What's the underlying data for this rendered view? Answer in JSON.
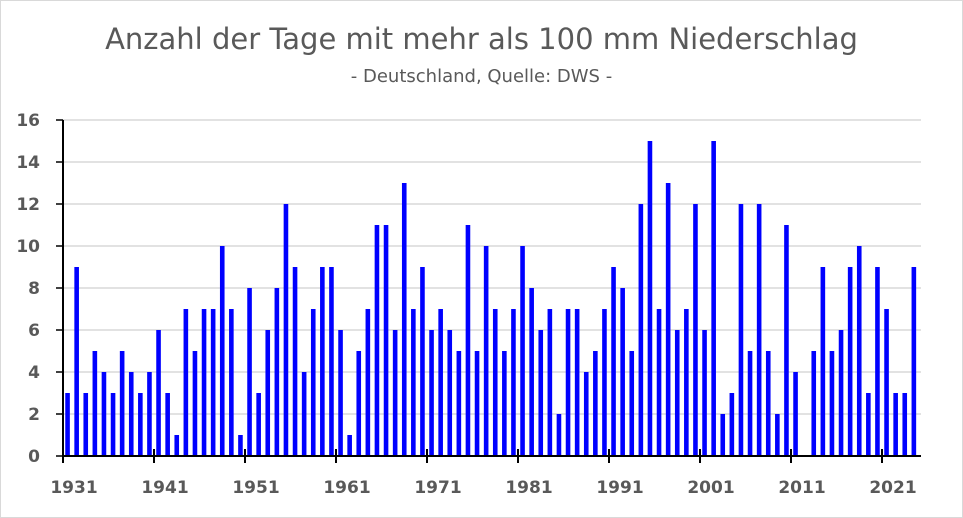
{
  "chart_data": {
    "type": "bar",
    "title": "Anzahl der Tage mit mehr als 100 mm Niederschlag",
    "subtitle": "- Deutschland, Quelle: DWS -",
    "xlabel": "",
    "ylabel": "",
    "ylim": [
      0,
      16
    ],
    "yticks": [
      "0",
      "2",
      "4",
      "6",
      "8",
      "10",
      "12",
      "14",
      "16"
    ],
    "xticks": [
      "1931",
      "1941",
      "1951",
      "1961",
      "1971",
      "1981",
      "1991",
      "2001",
      "2011",
      "2021"
    ],
    "grid": true,
    "bar_color": "#0000ff",
    "x_start": 1931,
    "values": [
      3,
      9,
      3,
      5,
      4,
      3,
      5,
      4,
      3,
      4,
      6,
      3,
      1,
      7,
      5,
      7,
      7,
      10,
      7,
      1,
      8,
      3,
      6,
      8,
      12,
      9,
      4,
      7,
      9,
      9,
      6,
      1,
      5,
      7,
      11,
      11,
      6,
      13,
      7,
      9,
      6,
      7,
      6,
      5,
      11,
      5,
      10,
      7,
      5,
      7,
      10,
      8,
      6,
      7,
      2,
      7,
      7,
      4,
      5,
      7,
      9,
      8,
      5,
      12,
      15,
      7,
      13,
      6,
      7,
      12,
      6,
      15,
      2,
      3,
      12,
      5,
      12,
      5,
      2,
      11,
      4,
      0,
      5,
      9,
      5,
      6,
      9,
      10,
      3,
      9,
      7,
      3,
      3,
      9
    ]
  }
}
